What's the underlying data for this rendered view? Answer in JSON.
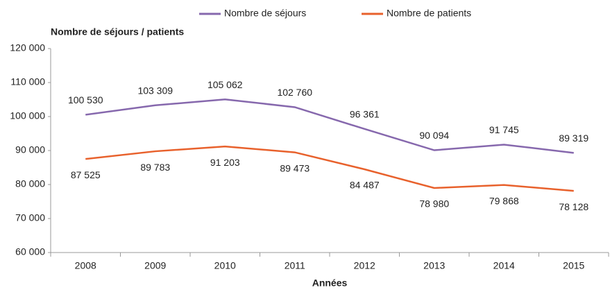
{
  "chart_data": {
    "type": "line",
    "y_label": "Nombre de séjours / patients",
    "x_label": "Années",
    "categories": [
      "2008",
      "2009",
      "2010",
      "2011",
      "2012",
      "2013",
      "2014",
      "2015"
    ],
    "series": [
      {
        "name": "Nombre de séjours",
        "color": "#8668ad",
        "values": [
          100530,
          103309,
          105062,
          102760,
          96361,
          90094,
          91745,
          89319
        ],
        "value_labels": [
          "100 530",
          "103 309",
          "105 062",
          "102 760",
          "96 361",
          "90 094",
          "91 745",
          "89 319"
        ]
      },
      {
        "name": "Nombre de patients",
        "color": "#e8612c",
        "values": [
          87525,
          89783,
          91203,
          89473,
          84487,
          78980,
          79868,
          78128
        ],
        "value_labels": [
          "87 525",
          "89 783",
          "91 203",
          "89 473",
          "84 487",
          "78 980",
          "79 868",
          "78 128"
        ]
      }
    ],
    "ylim": [
      60000,
      120000
    ],
    "yticks": [
      {
        "value": 60000,
        "label": "60 000"
      },
      {
        "value": 70000,
        "label": "70 000"
      },
      {
        "value": 80000,
        "label": "80 000"
      },
      {
        "value": 90000,
        "label": "90 000"
      },
      {
        "value": 100000,
        "label": "100 000"
      },
      {
        "value": 110000,
        "label": "110 000"
      },
      {
        "value": 120000,
        "label": "120 000"
      }
    ],
    "grid": false,
    "legend": "top"
  }
}
